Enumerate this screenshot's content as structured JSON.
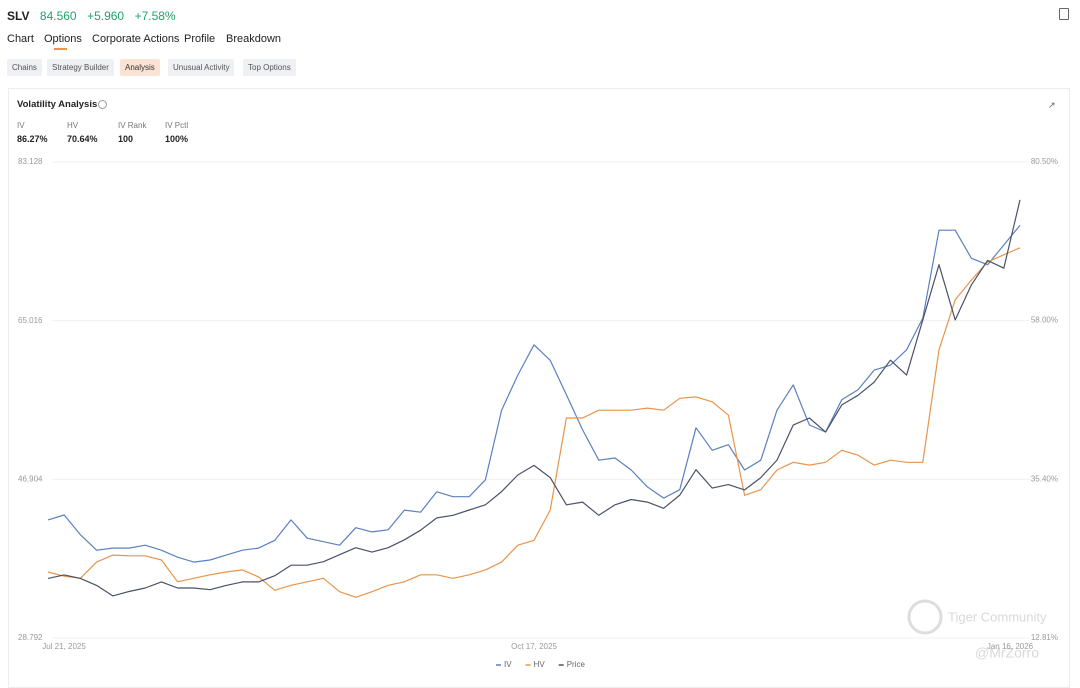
{
  "header": {
    "ticker": "SLV",
    "price": "84.560",
    "change": "+5.960",
    "change_pct": "+7.58%"
  },
  "tabs": [
    "Chart",
    "Options",
    "Corporate Actions",
    "Profile",
    "Breakdown"
  ],
  "subtabs": [
    "Chains",
    "Strategy Builder",
    "Analysis",
    "Unusual Activity",
    "Top Options"
  ],
  "panel": {
    "title": "Volatility Analysis",
    "stats": [
      {
        "label": "IV",
        "value": "86.27%"
      },
      {
        "label": "HV",
        "value": "70.64%"
      },
      {
        "label": "IV Rank",
        "value": "100"
      },
      {
        "label": "IV Pctl",
        "value": "100%"
      }
    ]
  },
  "watermark": {
    "brand": "Tiger Community",
    "user": "@MrZorro"
  },
  "chart_data": {
    "type": "line",
    "categories": [
      "Jul 21, 2025",
      null,
      null,
      null,
      null,
      null,
      null,
      null,
      null,
      null,
      null,
      null,
      null,
      null,
      null,
      null,
      null,
      null,
      null,
      null,
      null,
      null,
      null,
      null,
      null,
      null,
      null,
      null,
      null,
      null,
      "Oct 17, 2025",
      null,
      null,
      null,
      null,
      null,
      null,
      null,
      null,
      null,
      null,
      null,
      null,
      null,
      null,
      null,
      null,
      null,
      null,
      null,
      null,
      null,
      null,
      null,
      null,
      null,
      null,
      null,
      null,
      null,
      "Jan 16, 2026"
    ],
    "ylim": [
      28.792,
      83.128
    ],
    "yticks": [
      28.792,
      46.904,
      65.016,
      83.128
    ],
    "y2lim": [
      12.81,
      80.5
    ],
    "y2ticks": [
      {
        "value": 12.81,
        "label": "12.81%"
      },
      {
        "value": 35.4,
        "label": "35.40%"
      },
      {
        "value": 58,
        "label": "58.00%"
      },
      {
        "value": 80.5,
        "label": "80.50%"
      }
    ],
    "grid": true,
    "series": [
      {
        "name": "IV",
        "color": "#5b80c0",
        "axis": "y2",
        "values": [
          29.6,
          30.3,
          27.5,
          25.3,
          25.6,
          25.6,
          26.0,
          25.3,
          24.3,
          23.6,
          23.9,
          24.6,
          25.3,
          25.6,
          26.7,
          29.6,
          27.0,
          26.5,
          26.0,
          28.5,
          27.9,
          28.2,
          31.0,
          30.7,
          33.6,
          32.9,
          32.9,
          35.3,
          45.2,
          50.2,
          54.5,
          52.3,
          47.4,
          42.4,
          38.1,
          38.4,
          36.7,
          34.3,
          32.7,
          33.9,
          42.7,
          39.5,
          40.3,
          36.7,
          38.1,
          45.2,
          48.8,
          43.1,
          42.1,
          46.7,
          48.1,
          50.9,
          51.6,
          53.8,
          58.3,
          70.8,
          70.8,
          66.8,
          65.9,
          68.7,
          71.5
        ]
      },
      {
        "name": "HV",
        "color": "#e8944a",
        "axis": "y2",
        "values": [
          22.2,
          21.6,
          21.3,
          23.6,
          24.6,
          24.5,
          24.5,
          23.9,
          20.8,
          21.3,
          21.8,
          22.2,
          22.5,
          21.5,
          19.6,
          20.3,
          20.8,
          21.3,
          19.4,
          18.6,
          19.4,
          20.3,
          20.8,
          21.8,
          21.8,
          21.3,
          21.8,
          22.5,
          23.6,
          26.0,
          26.7,
          31.0,
          44.1,
          44.1,
          45.2,
          45.2,
          45.2,
          45.5,
          45.2,
          46.9,
          47.1,
          46.4,
          44.5,
          33.1,
          33.9,
          36.7,
          37.8,
          37.4,
          37.8,
          39.5,
          38.8,
          37.4,
          38.1,
          37.8,
          37.8,
          53.8,
          60.9,
          63.7,
          66.3,
          67.3,
          68.3
        ]
      },
      {
        "name": "Price",
        "color": "#4a5266",
        "values": [
          35.6,
          36.0,
          35.6,
          34.8,
          33.6,
          34.1,
          34.5,
          35.2,
          34.5,
          34.5,
          34.3,
          34.8,
          35.2,
          35.2,
          35.9,
          37.1,
          37.1,
          37.5,
          38.3,
          39.1,
          38.6,
          39.1,
          40.0,
          41.1,
          42.5,
          42.8,
          43.4,
          44.0,
          45.5,
          47.4,
          48.5,
          47.1,
          44.0,
          44.3,
          42.8,
          44.0,
          44.6,
          44.3,
          43.6,
          45.1,
          48.0,
          45.9,
          46.3,
          45.7,
          47.1,
          49.1,
          53.1,
          53.9,
          52.3,
          55.4,
          56.5,
          58.0,
          60.5,
          58.8,
          65.1,
          71.4,
          65.1,
          69.1,
          71.9,
          71.0,
          78.8
        ]
      }
    ]
  }
}
